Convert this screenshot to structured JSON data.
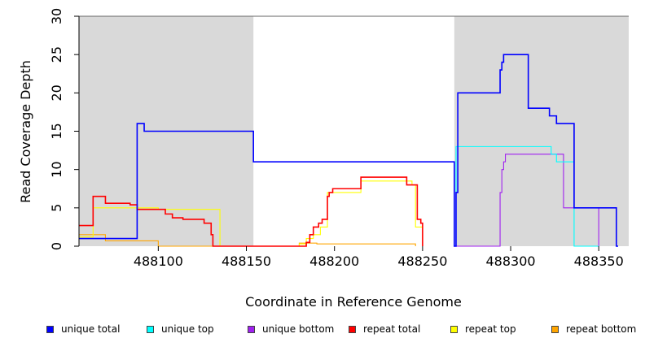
{
  "chart_data": {
    "type": "line",
    "title": "",
    "xlabel": "Coordinate in Reference Genome",
    "ylabel": "Read Coverage Depth",
    "xlim": [
      488055,
      488367
    ],
    "ylim": [
      0,
      30
    ],
    "x_ticks": [
      488100,
      488150,
      488200,
      488250,
      488300,
      488350
    ],
    "y_ticks": [
      0,
      5,
      10,
      15,
      20,
      25,
      30
    ],
    "x_tick_labels": [
      "488100",
      "488150",
      "488200",
      "488250",
      "488300",
      "488350"
    ],
    "y_tick_labels": [
      "0",
      "5",
      "10",
      "15",
      "20",
      "25",
      "30"
    ],
    "shaded_regions": [
      [
        488055,
        488154
      ],
      [
        488268,
        488367
      ]
    ],
    "shade_color": "#d9d9d9",
    "legend_position": "bottom",
    "series": [
      {
        "name": "repeat bottom",
        "color": "#ffa500",
        "x": [
          488055,
          488062,
          488070,
          488087,
          488100,
          488130,
          488131,
          488135,
          488180,
          488184,
          488190,
          488246
        ],
        "y": [
          1.5,
          1.5,
          0.7,
          0.7,
          0,
          0,
          0,
          0,
          0.4,
          0.4,
          0.3,
          0
        ]
      },
      {
        "name": "repeat top",
        "color": "#ffff00",
        "x": [
          488055,
          488062,
          488063,
          488088,
          488100,
          488135,
          488180,
          488184,
          488188,
          488192,
          488196,
          488206,
          488215,
          488240,
          488244,
          488246,
          488250
        ],
        "y": [
          1.2,
          1.2,
          5,
          5,
          4.8,
          0,
          0.3,
          1,
          1.5,
          2.5,
          7,
          7,
          8.5,
          8.5,
          8,
          2.5,
          0
        ]
      },
      {
        "name": "repeat total",
        "color": "#ff0000",
        "x": [
          488055,
          488062,
          488063,
          488070,
          488080,
          488084,
          488088,
          488100,
          488104,
          488108,
          488114,
          488126,
          488129,
          488130,
          488131,
          488180,
          488184,
          488186,
          488188,
          488191,
          488193,
          488196,
          488197,
          488199,
          488206,
          488215,
          488239,
          488241,
          488246,
          488247,
          488249,
          488250
        ],
        "y": [
          2.7,
          2.7,
          6.5,
          5.6,
          5.6,
          5.4,
          4.8,
          4.8,
          4.2,
          3.7,
          3.5,
          3,
          3,
          1.5,
          0,
          0,
          0.5,
          1.5,
          2.5,
          3,
          3.5,
          6.5,
          7,
          7.5,
          7.5,
          9,
          9,
          8,
          8,
          3.5,
          3,
          0
        ]
      },
      {
        "name": "unique bottom",
        "color": "#a020f0",
        "x": [
          488268,
          488294,
          488295,
          488296,
          488297,
          488308,
          488330,
          488336,
          488350
        ],
        "y": [
          0,
          7,
          10,
          11,
          12,
          12,
          5,
          5,
          0
        ]
      },
      {
        "name": "unique top",
        "color": "#00ffff",
        "x": [
          488268,
          488269,
          488320,
          488323,
          488326,
          488334,
          488336,
          488350
        ],
        "y": [
          0,
          13,
          13,
          12,
          11,
          11,
          0,
          0
        ]
      },
      {
        "name": "unique total",
        "color": "#0000ff",
        "x": [
          488055,
          488067,
          488086,
          488088,
          488090,
          488092,
          488150,
          488154,
          488268,
          488269,
          488270,
          488292,
          488294,
          488295,
          488296,
          488297,
          488300,
          488308,
          488310,
          488320,
          488322,
          488326,
          488328,
          488334,
          488336,
          488350,
          488360,
          488361
        ],
        "y": [
          1,
          1,
          1,
          16,
          16,
          15,
          15,
          11,
          0,
          7,
          20,
          20,
          23,
          24,
          25,
          25,
          25,
          25,
          18,
          18,
          17,
          16,
          16,
          16,
          5,
          5,
          0,
          0
        ]
      }
    ]
  },
  "legend": {
    "items": [
      {
        "label": "unique total",
        "color": "#0000ff"
      },
      {
        "label": "unique top",
        "color": "#00ffff"
      },
      {
        "label": "unique bottom",
        "color": "#a020f0"
      },
      {
        "label": "repeat total",
        "color": "#ff0000"
      },
      {
        "label": "repeat top",
        "color": "#ffff00"
      },
      {
        "label": "repeat bottom",
        "color": "#ffa500"
      }
    ]
  }
}
